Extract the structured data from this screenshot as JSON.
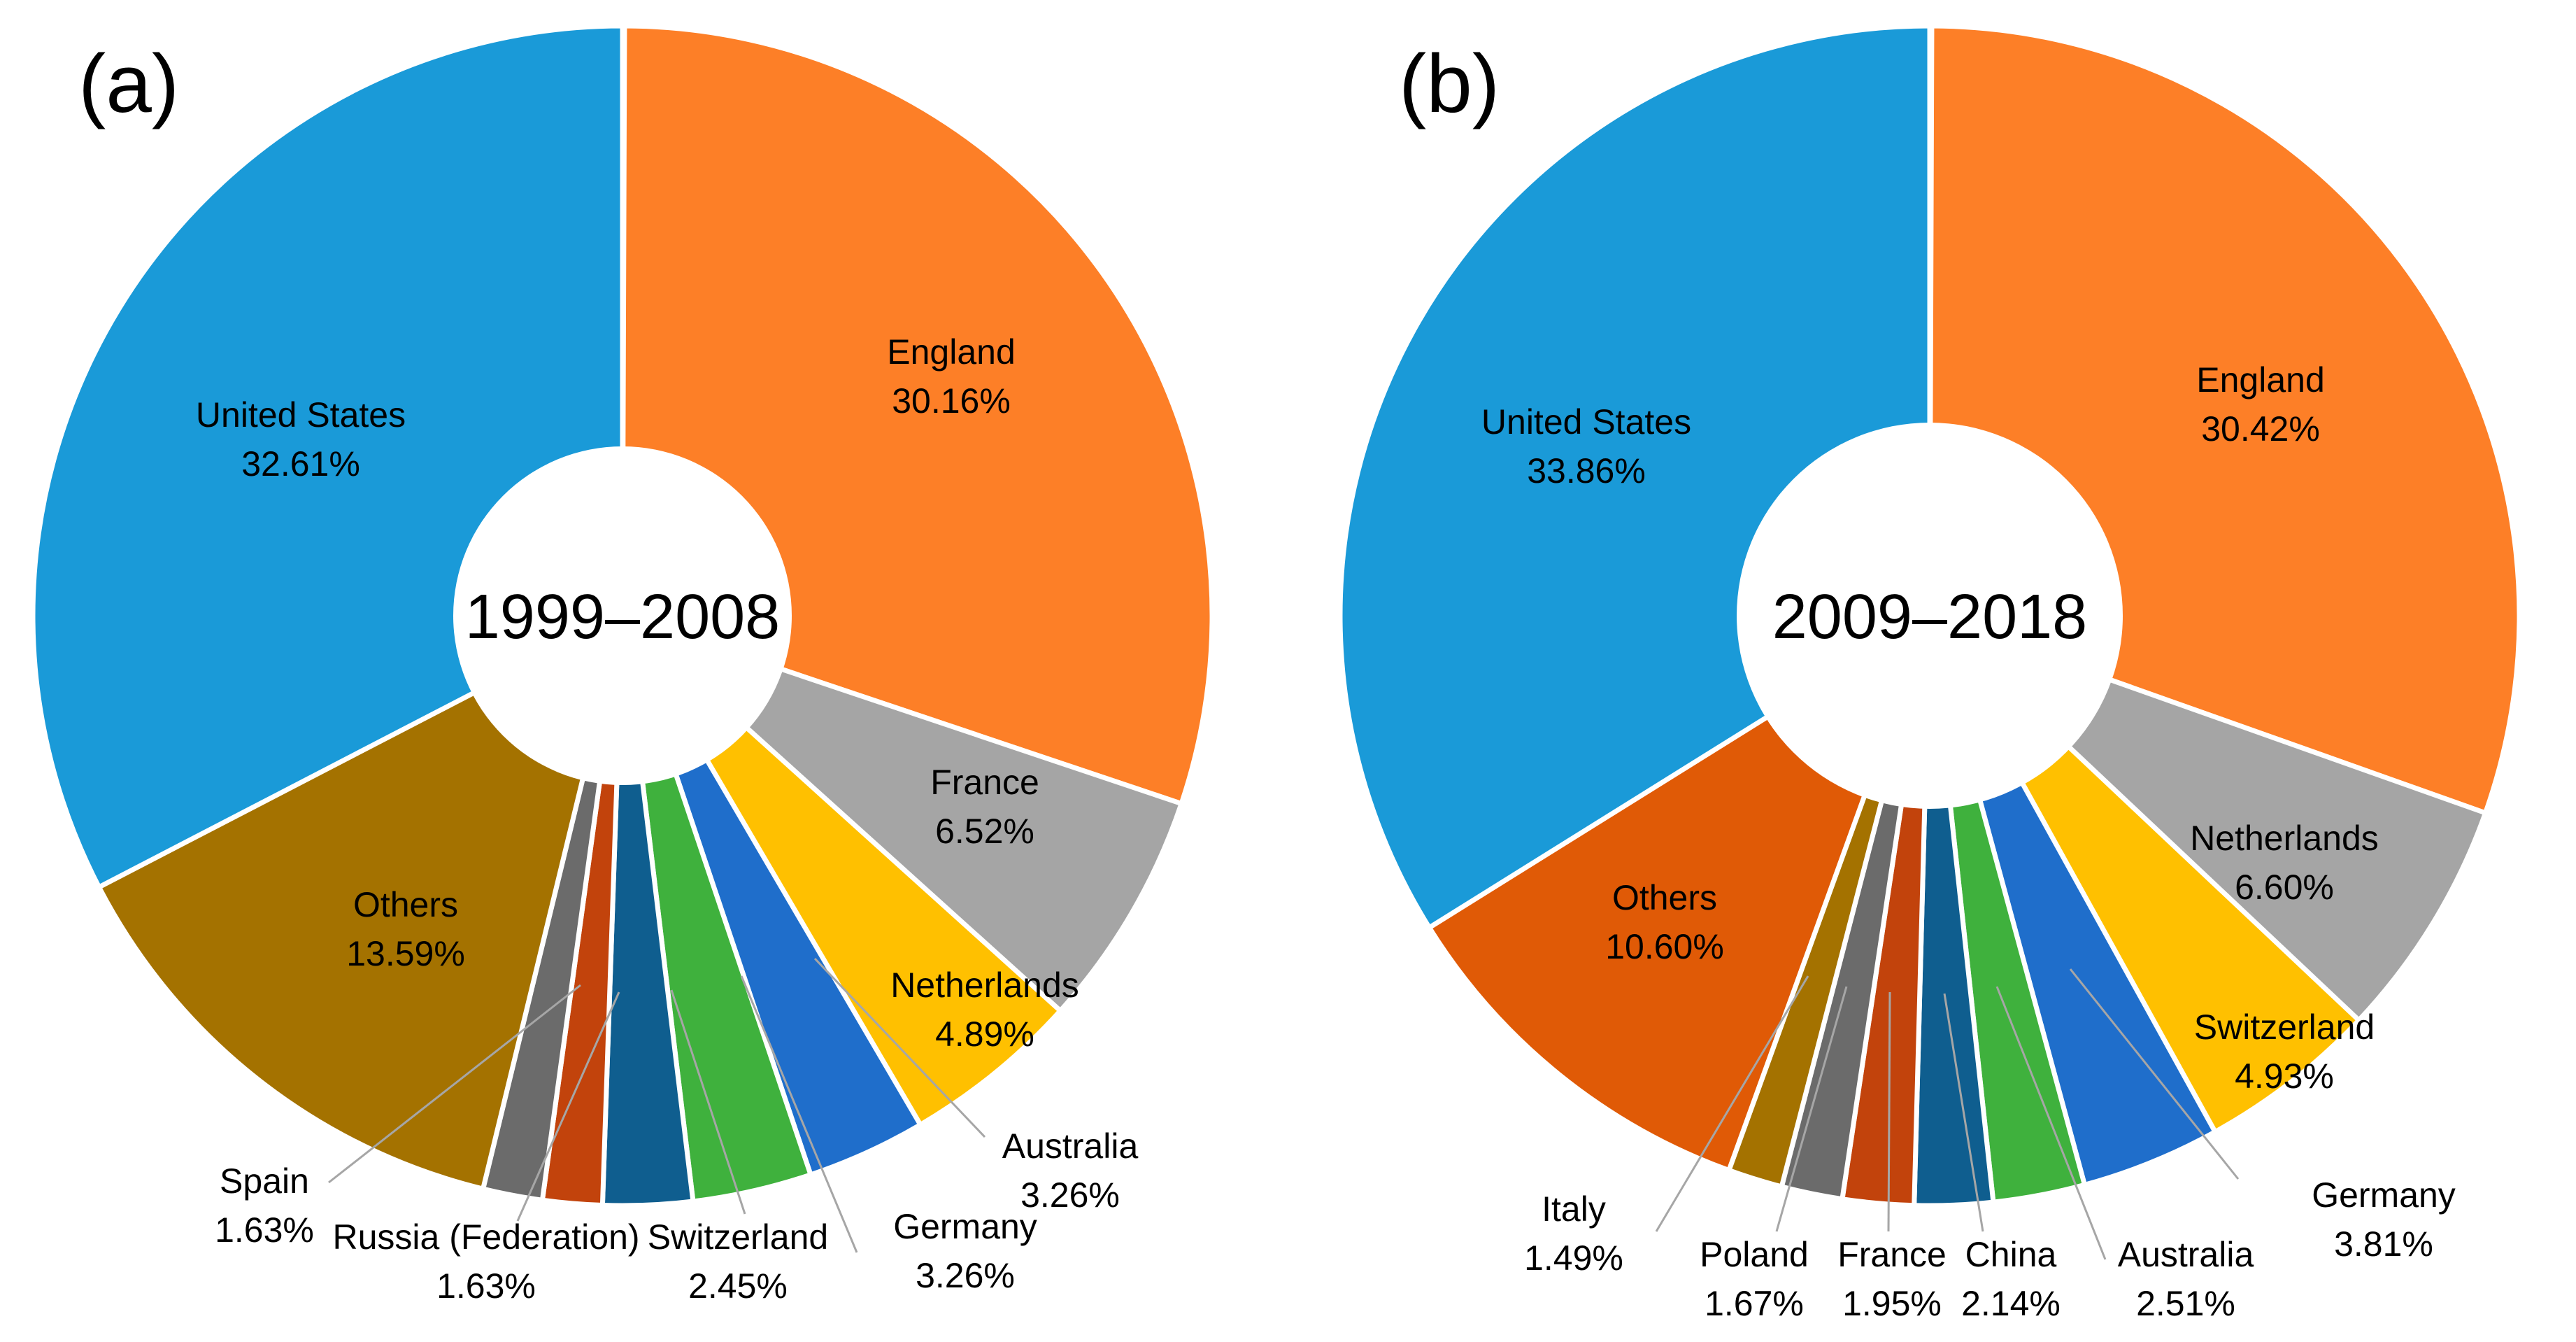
{
  "colors": {
    "background": "#ffffff",
    "slice_border": "#ffffff",
    "leader_line": "#a6a6a6",
    "hole": "#ffffff"
  },
  "chart_data": [
    {
      "type": "pie",
      "panel_label": "(a)",
      "center_label": "1999–2008",
      "slices": [
        {
          "name": "England",
          "value": 30.16,
          "label": "30.16%",
          "color": "#fd7f27"
        },
        {
          "name": "France",
          "value": 6.52,
          "label": "6.52%",
          "color": "#a5a5a5"
        },
        {
          "name": "Netherlands",
          "value": 4.89,
          "label": "4.89%",
          "color": "#ffc000"
        },
        {
          "name": "Australia",
          "value": 3.26,
          "label": "3.26%",
          "color": "#1f6ecb"
        },
        {
          "name": "Germany",
          "value": 3.26,
          "label": "3.26%",
          "color": "#3fb13d"
        },
        {
          "name": "Switzerland",
          "value": 2.45,
          "label": "2.45%",
          "color": "#0f5e8f"
        },
        {
          "name": "Russia (Federation)",
          "value": 1.63,
          "label": "1.63%",
          "color": "#c2430c"
        },
        {
          "name": "Spain",
          "value": 1.63,
          "label": "1.63%",
          "color": "#6b6b6b"
        },
        {
          "name": "Others",
          "value": 13.59,
          "label": "13.59%",
          "color": "#a47200"
        },
        {
          "name": "United States",
          "value": 32.61,
          "label": "32.61%",
          "color": "#1a9ad8"
        }
      ]
    },
    {
      "type": "pie",
      "panel_label": "(b)",
      "center_label": "2009–2018",
      "slices": [
        {
          "name": "England",
          "value": 30.42,
          "label": "30.42%",
          "color": "#fd7f27"
        },
        {
          "name": "Netherlands",
          "value": 6.6,
          "label": "6.60%",
          "color": "#a5a5a5"
        },
        {
          "name": "Switzerland",
          "value": 4.93,
          "label": "4.93%",
          "color": "#ffc000"
        },
        {
          "name": "Germany",
          "value": 3.81,
          "label": "3.81%",
          "color": "#1f6ecb"
        },
        {
          "name": "Australia",
          "value": 2.51,
          "label": "2.51%",
          "color": "#3fb13d"
        },
        {
          "name": "China",
          "value": 2.14,
          "label": "2.14%",
          "color": "#0f5e8f"
        },
        {
          "name": "France",
          "value": 1.95,
          "label": "1.95%",
          "color": "#c2430c"
        },
        {
          "name": "Poland",
          "value": 1.67,
          "label": "1.67%",
          "color": "#6b6b6b"
        },
        {
          "name": "Italy",
          "value": 1.49,
          "label": "1.49%",
          "color": "#a47200"
        },
        {
          "name": "Others",
          "value": 10.6,
          "label": "10.60%",
          "color": "#e05a06"
        },
        {
          "name": "United States",
          "value": 33.86,
          "label": "33.86%",
          "color": "#1a9ad8"
        }
      ]
    }
  ]
}
